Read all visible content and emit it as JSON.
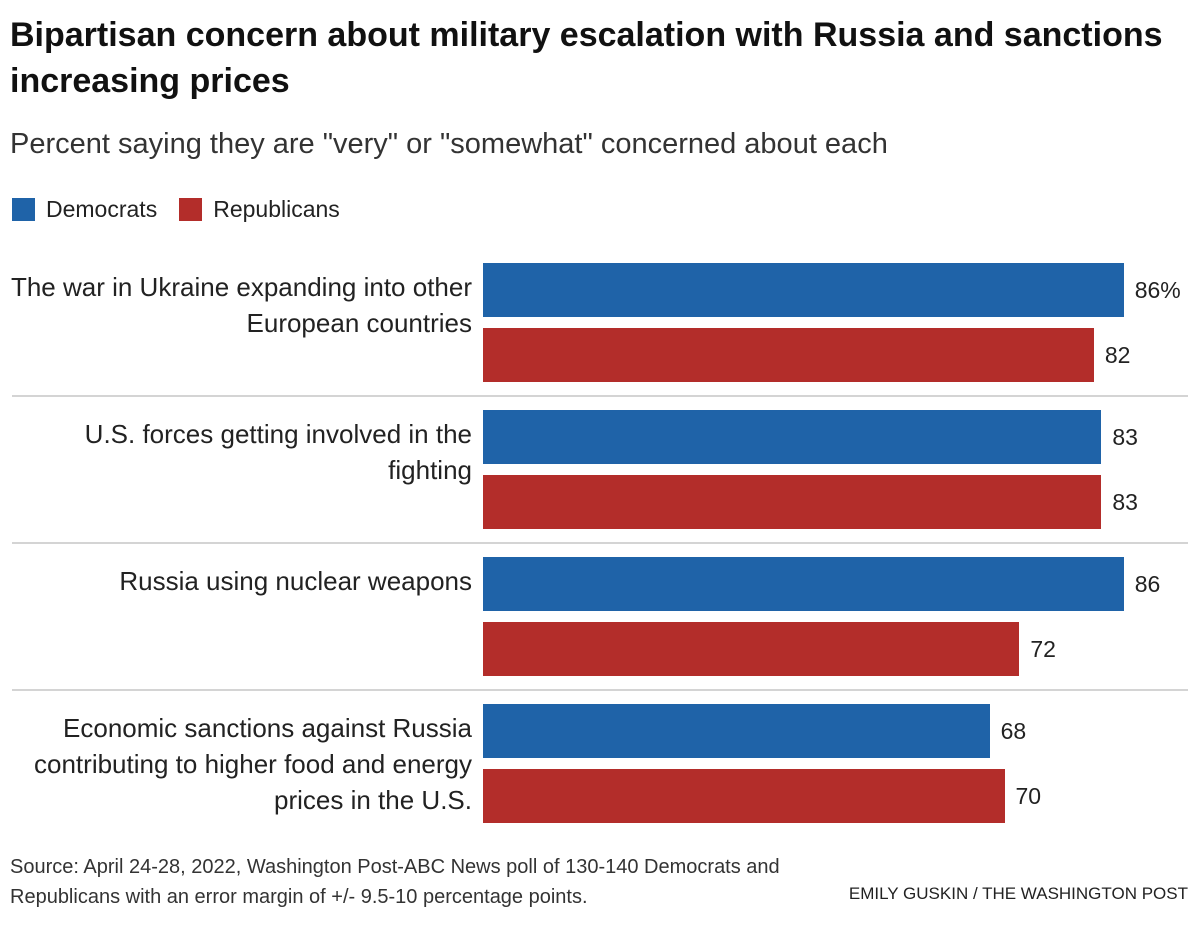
{
  "chart_data": {
    "type": "bar",
    "orientation": "horizontal",
    "title": "Bipartisan concern about military escalation with Russia and sanctions increasing prices",
    "subtitle": "Percent saying they are \"very\" or \"somewhat\" concerned about each",
    "categories": [
      "The war in Ukraine expanding into other European countries",
      "U.S. forces getting involved in the fighting",
      "Russia using nuclear weapons",
      "Economic sanctions against Russia contributing to higher food and energy prices in the U.S."
    ],
    "series": [
      {
        "name": "Democrats",
        "color": "#1f63a8",
        "values": [
          86,
          83,
          86,
          68
        ],
        "value_labels": [
          "86%",
          "83",
          "86",
          "68"
        ]
      },
      {
        "name": "Republicans",
        "color": "#b32d2a",
        "values": [
          82,
          83,
          72,
          70
        ],
        "value_labels": [
          "82",
          "83",
          "72",
          "70"
        ]
      }
    ],
    "source": "Source: April 24-28, 2022, Washington Post-ABC News poll of 130-140 Democrats and Republicans with an error margin of +/- 9.5-10 percentage points.",
    "credit": "EMILY GUSKIN / THE WASHINGTON POST"
  }
}
